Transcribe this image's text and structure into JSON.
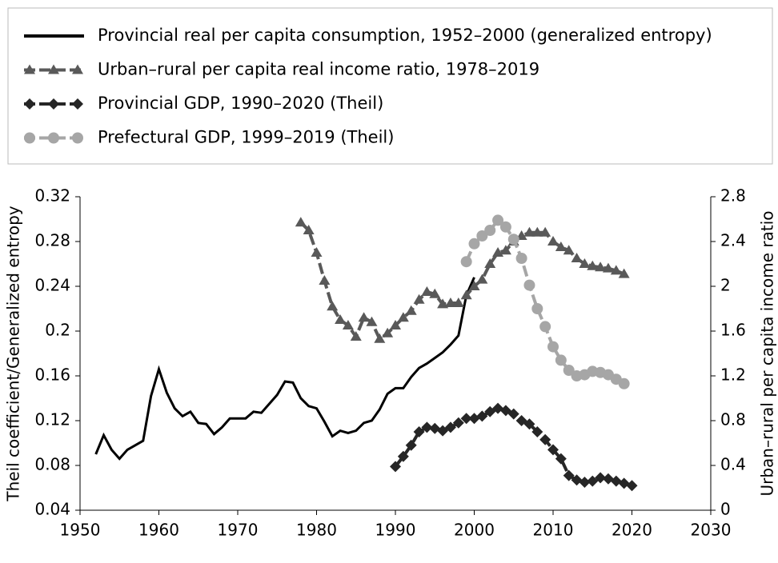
{
  "chart_data": {
    "type": "line",
    "y_label": "Theil coefficient/Generalized entropy",
    "y2_label": "Urban–rural per capita income ratio",
    "xlim": [
      1950,
      2030
    ],
    "xticks": [
      1950,
      1960,
      1970,
      1980,
      1990,
      2000,
      2010,
      2020,
      2030
    ],
    "ylim": [
      0.04,
      0.32
    ],
    "yticks": [
      0.04,
      0.08,
      0.12,
      0.16,
      0.2,
      0.24,
      0.28,
      0.32
    ],
    "y2lim": [
      0,
      2.8
    ],
    "y2ticks": [
      0,
      0.4,
      0.8,
      1.2,
      1.6,
      2,
      2.4,
      2.8
    ],
    "grid": false,
    "series": [
      {
        "name": "Provincial real per capita consumption, 1952–2000 (generalized entropy)",
        "color": "#000000",
        "marker": "none",
        "dash": false,
        "x": [
          1952,
          1953,
          1954,
          1955,
          1956,
          1957,
          1958,
          1959,
          1960,
          1961,
          1962,
          1963,
          1964,
          1965,
          1966,
          1967,
          1968,
          1969,
          1970,
          1971,
          1972,
          1973,
          1974,
          1975,
          1976,
          1977,
          1978,
          1979,
          1980,
          1981,
          1982,
          1983,
          1984,
          1985,
          1986,
          1987,
          1988,
          1989,
          1990,
          1991,
          1992,
          1993,
          1994,
          1995,
          1996,
          1997,
          1998,
          1999,
          2000
        ],
        "values": [
          0.09,
          0.107,
          0.094,
          0.086,
          0.094,
          0.098,
          0.102,
          0.142,
          0.166,
          0.145,
          0.131,
          0.124,
          0.128,
          0.118,
          0.117,
          0.108,
          0.114,
          0.122,
          0.122,
          0.122,
          0.128,
          0.127,
          0.135,
          0.143,
          0.155,
          0.154,
          0.14,
          0.133,
          0.131,
          0.119,
          0.106,
          0.111,
          0.109,
          0.111,
          0.118,
          0.12,
          0.13,
          0.144,
          0.149,
          0.149,
          0.159,
          0.167,
          0.171,
          0.176,
          0.181,
          0.188,
          0.196,
          0.232,
          0.248
        ]
      },
      {
        "name": "Urban–rural per capita real income ratio, 1978–2019",
        "color": "#595959",
        "marker": "triangle",
        "dash": true,
        "axis": "y2",
        "x": [
          1978,
          1979,
          1980,
          1981,
          1982,
          1983,
          1984,
          1985,
          1986,
          1987,
          1988,
          1989,
          1990,
          1991,
          1992,
          1993,
          1994,
          1995,
          1996,
          1997,
          1998,
          1999,
          2000,
          2001,
          2002,
          2003,
          2004,
          2005,
          2006,
          2007,
          2008,
          2009,
          2010,
          2011,
          2012,
          2013,
          2014,
          2015,
          2016,
          2017,
          2018,
          2019
        ],
        "values": [
          2.57,
          2.5,
          2.3,
          2.05,
          1.82,
          1.7,
          1.65,
          1.55,
          1.72,
          1.68,
          1.53,
          1.58,
          1.65,
          1.72,
          1.78,
          1.88,
          1.95,
          1.93,
          1.84,
          1.85,
          1.85,
          1.92,
          2.0,
          2.06,
          2.2,
          2.3,
          2.32,
          2.4,
          2.45,
          2.48,
          2.48,
          2.48,
          2.4,
          2.35,
          2.32,
          2.25,
          2.2,
          2.18,
          2.17,
          2.16,
          2.14,
          2.11
        ]
      },
      {
        "name": "Provincial GDP, 1990–2020 (Theil)",
        "color": "#262626",
        "marker": "diamond",
        "dash": true,
        "x": [
          1990,
          1991,
          1992,
          1993,
          1994,
          1995,
          1996,
          1997,
          1998,
          1999,
          2000,
          2001,
          2002,
          2003,
          2004,
          2005,
          2006,
          2007,
          2008,
          2009,
          2010,
          2011,
          2012,
          2013,
          2014,
          2015,
          2016,
          2017,
          2018,
          2019,
          2020
        ],
        "values": [
          0.079,
          0.088,
          0.098,
          0.11,
          0.114,
          0.113,
          0.111,
          0.114,
          0.118,
          0.122,
          0.122,
          0.124,
          0.128,
          0.131,
          0.129,
          0.126,
          0.12,
          0.117,
          0.11,
          0.103,
          0.094,
          0.086,
          0.071,
          0.067,
          0.065,
          0.066,
          0.069,
          0.068,
          0.066,
          0.064,
          0.062
        ]
      },
      {
        "name": "Prefectural GDP, 1999–2019 (Theil)",
        "color": "#a6a6a6",
        "marker": "circle",
        "dash": true,
        "x": [
          1999,
          2000,
          2001,
          2002,
          2003,
          2004,
          2005,
          2006,
          2007,
          2008,
          2009,
          2010,
          2011,
          2012,
          2013,
          2014,
          2015,
          2016,
          2017,
          2018,
          2019
        ],
        "values": [
          0.262,
          0.278,
          0.285,
          0.29,
          0.299,
          0.293,
          0.282,
          0.265,
          0.241,
          0.22,
          0.204,
          0.186,
          0.174,
          0.165,
          0.16,
          0.161,
          0.164,
          0.163,
          0.161,
          0.157,
          0.153
        ]
      }
    ]
  }
}
